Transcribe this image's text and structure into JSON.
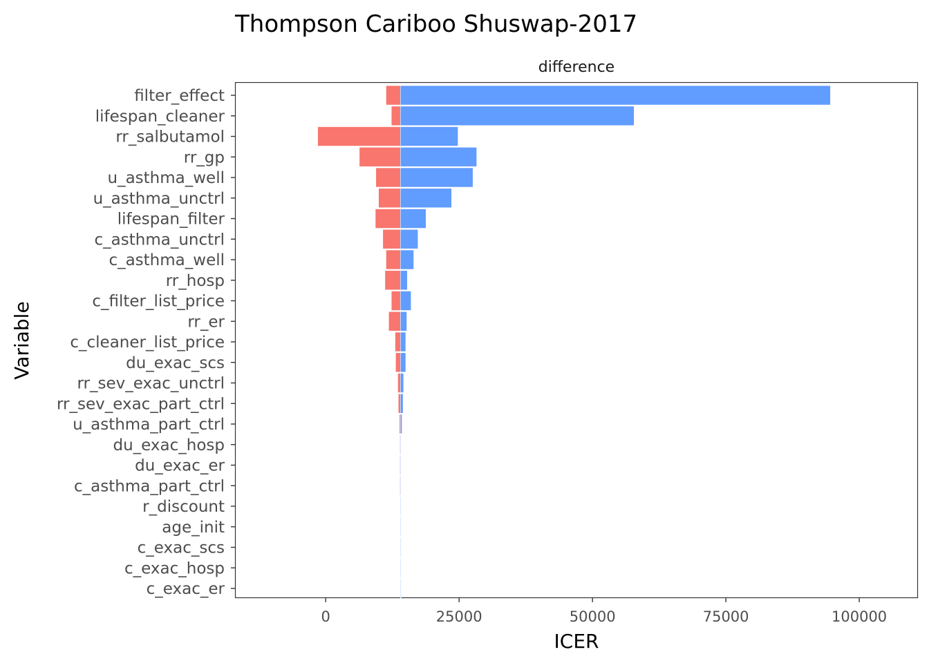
{
  "chart_data": {
    "type": "bar",
    "orientation": "horizontal",
    "title": "Thompson Cariboo Shuswap-2017",
    "facet_label": "difference",
    "xlabel": "ICER",
    "ylabel": "Variable",
    "xlim": [
      -17000,
      111000
    ],
    "xticks": [
      0,
      25000,
      50000,
      75000,
      100000
    ],
    "xtick_labels": [
      "0",
      "25000",
      "50000",
      "75000",
      "100000"
    ],
    "base_value": 14000,
    "grid": false,
    "colors": {
      "low": "#F8766D",
      "high": "#619CFF"
    },
    "categories": [
      "filter_effect",
      "lifespan_cleaner",
      "rr_salbutamol",
      "rr_gp",
      "u_asthma_well",
      "u_asthma_unctrl",
      "lifespan_filter",
      "c_asthma_unctrl",
      "c_asthma_well",
      "rr_hosp",
      "c_filter_list_price",
      "rr_er",
      "c_cleaner_list_price",
      "du_exac_scs",
      "rr_sev_exac_unctrl",
      "rr_sev_exac_part_ctrl",
      "u_asthma_part_ctrl",
      "du_exac_hosp",
      "du_exac_er",
      "c_asthma_part_ctrl",
      "r_discount",
      "age_init",
      "c_exac_scs",
      "c_exac_hosp",
      "c_exac_er"
    ],
    "series": [
      {
        "key": "low",
        "values": [
          11300,
          12300,
          -1500,
          6300,
          9400,
          9900,
          9300,
          10700,
          11300,
          11100,
          12300,
          11800,
          13000,
          13100,
          13500,
          13600,
          13800,
          13900,
          13900,
          13900,
          14000,
          14000,
          14000,
          14000,
          14000
        ]
      },
      {
        "key": "high",
        "values": [
          94600,
          57800,
          24800,
          28300,
          27600,
          23600,
          18800,
          17300,
          16500,
          15300,
          16000,
          15200,
          15000,
          15000,
          14600,
          14500,
          14300,
          14100,
          14100,
          14100,
          14050,
          14050,
          14000,
          14000,
          14000
        ]
      }
    ]
  }
}
